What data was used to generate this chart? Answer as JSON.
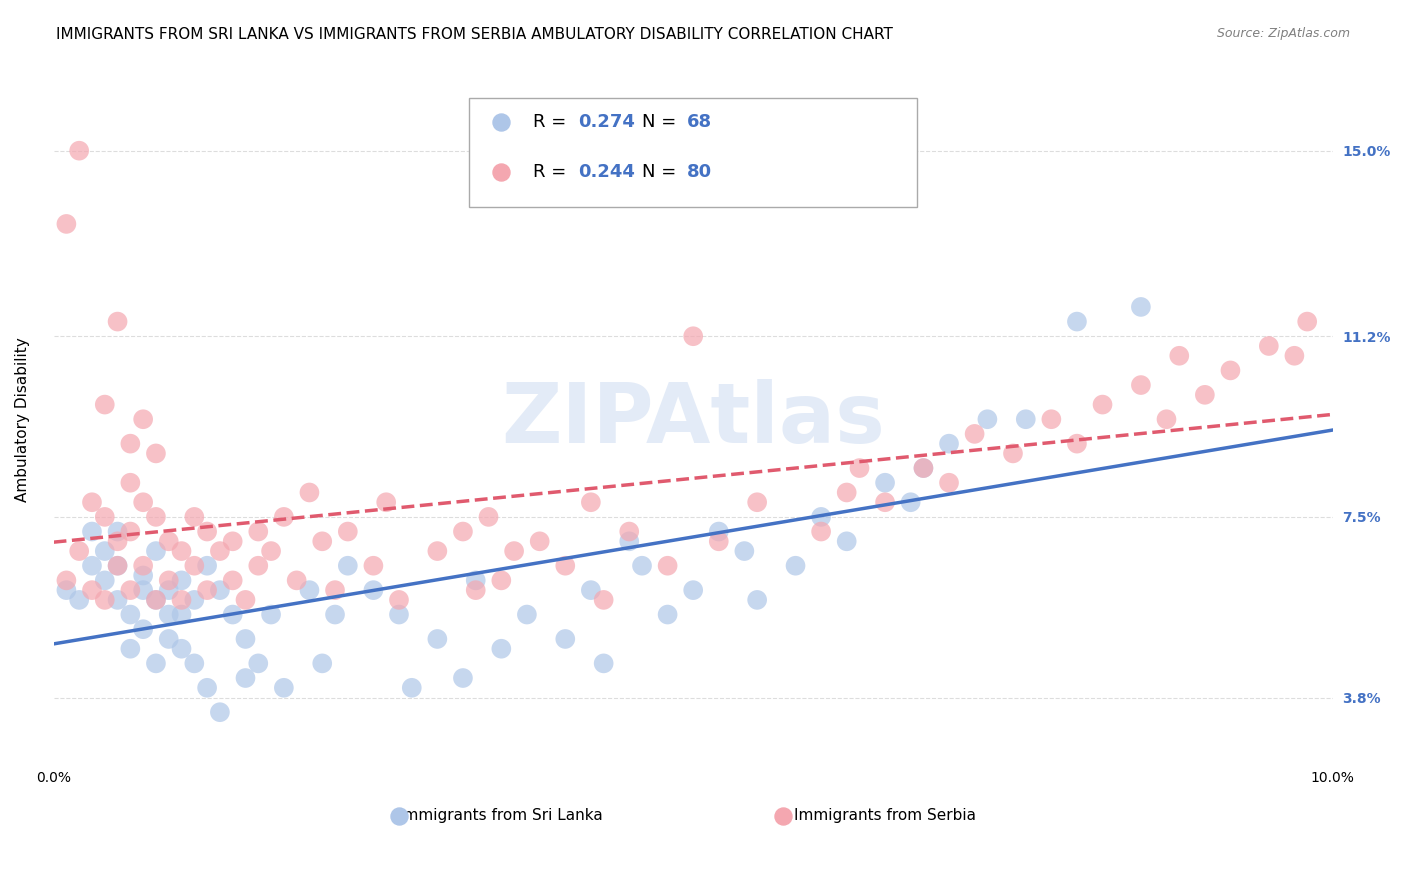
{
  "title": "IMMIGRANTS FROM SRI LANKA VS IMMIGRANTS FROM SERBIA AMBULATORY DISABILITY CORRELATION CHART",
  "source": "Source: ZipAtlas.com",
  "ylabel": "Ambulatory Disability",
  "xlabel": "",
  "xlim": [
    0.0,
    0.1
  ],
  "ylim": [
    0.025,
    0.165
  ],
  "yticks": [
    0.038,
    0.075,
    0.112,
    0.15
  ],
  "ytick_labels": [
    "3.8%",
    "7.5%",
    "11.2%",
    "15.0%"
  ],
  "xticks": [
    0.0,
    0.02,
    0.04,
    0.06,
    0.08,
    0.1
  ],
  "xtick_labels": [
    "0.0%",
    "",
    "",
    "",
    "",
    "10.0%"
  ],
  "sri_lanka_color": "#aec6e8",
  "serbia_color": "#f4a7b0",
  "sri_lanka_line_color": "#4472c4",
  "serbia_line_color": "#e05a6e",
  "sri_lanka_R": 0.274,
  "sri_lanka_N": 68,
  "serbia_R": 0.244,
  "serbia_N": 80,
  "legend_label_sri": "Immigrants from Sri Lanka",
  "legend_label_serbia": "Immigrants from Serbia",
  "watermark": "ZIPAtlas",
  "watermark_color": "#c8d8f0",
  "background_color": "#ffffff",
  "grid_color": "#dddddd",
  "title_fontsize": 11,
  "axis_label_fontsize": 11,
  "tick_fontsize": 10,
  "legend_fontsize": 13,
  "sri_lanka_x": [
    0.001,
    0.002,
    0.003,
    0.003,
    0.004,
    0.004,
    0.005,
    0.005,
    0.005,
    0.006,
    0.006,
    0.007,
    0.007,
    0.007,
    0.008,
    0.008,
    0.008,
    0.009,
    0.009,
    0.009,
    0.01,
    0.01,
    0.01,
    0.011,
    0.011,
    0.012,
    0.012,
    0.013,
    0.013,
    0.014,
    0.015,
    0.015,
    0.016,
    0.017,
    0.018,
    0.02,
    0.021,
    0.022,
    0.023,
    0.025,
    0.027,
    0.028,
    0.03,
    0.032,
    0.033,
    0.035,
    0.037,
    0.04,
    0.042,
    0.043,
    0.045,
    0.046,
    0.048,
    0.05,
    0.052,
    0.054,
    0.055,
    0.058,
    0.06,
    0.062,
    0.065,
    0.067,
    0.068,
    0.07,
    0.073,
    0.076,
    0.08,
    0.085
  ],
  "sri_lanka_y": [
    0.06,
    0.058,
    0.072,
    0.065,
    0.068,
    0.062,
    0.072,
    0.058,
    0.065,
    0.055,
    0.048,
    0.06,
    0.052,
    0.063,
    0.058,
    0.045,
    0.068,
    0.055,
    0.06,
    0.05,
    0.062,
    0.048,
    0.055,
    0.058,
    0.045,
    0.065,
    0.04,
    0.06,
    0.035,
    0.055,
    0.05,
    0.042,
    0.045,
    0.055,
    0.04,
    0.06,
    0.045,
    0.055,
    0.065,
    0.06,
    0.055,
    0.04,
    0.05,
    0.042,
    0.062,
    0.048,
    0.055,
    0.05,
    0.06,
    0.045,
    0.07,
    0.065,
    0.055,
    0.06,
    0.072,
    0.068,
    0.058,
    0.065,
    0.075,
    0.07,
    0.082,
    0.078,
    0.085,
    0.09,
    0.095,
    0.095,
    0.115,
    0.118
  ],
  "serbia_x": [
    0.001,
    0.001,
    0.002,
    0.002,
    0.003,
    0.003,
    0.004,
    0.004,
    0.004,
    0.005,
    0.005,
    0.005,
    0.006,
    0.006,
    0.006,
    0.006,
    0.007,
    0.007,
    0.007,
    0.008,
    0.008,
    0.008,
    0.009,
    0.009,
    0.01,
    0.01,
    0.011,
    0.011,
    0.012,
    0.012,
    0.013,
    0.014,
    0.014,
    0.015,
    0.016,
    0.016,
    0.017,
    0.018,
    0.019,
    0.02,
    0.021,
    0.022,
    0.023,
    0.025,
    0.026,
    0.027,
    0.03,
    0.032,
    0.033,
    0.034,
    0.035,
    0.036,
    0.038,
    0.04,
    0.042,
    0.043,
    0.045,
    0.048,
    0.05,
    0.052,
    0.055,
    0.06,
    0.062,
    0.063,
    0.065,
    0.068,
    0.07,
    0.072,
    0.075,
    0.078,
    0.08,
    0.082,
    0.085,
    0.087,
    0.088,
    0.09,
    0.092,
    0.095,
    0.097,
    0.098
  ],
  "serbia_y": [
    0.062,
    0.135,
    0.068,
    0.15,
    0.06,
    0.078,
    0.058,
    0.098,
    0.075,
    0.07,
    0.065,
    0.115,
    0.06,
    0.072,
    0.082,
    0.09,
    0.065,
    0.078,
    0.095,
    0.058,
    0.075,
    0.088,
    0.062,
    0.07,
    0.068,
    0.058,
    0.075,
    0.065,
    0.072,
    0.06,
    0.068,
    0.062,
    0.07,
    0.058,
    0.065,
    0.072,
    0.068,
    0.075,
    0.062,
    0.08,
    0.07,
    0.06,
    0.072,
    0.065,
    0.078,
    0.058,
    0.068,
    0.072,
    0.06,
    0.075,
    0.062,
    0.068,
    0.07,
    0.065,
    0.078,
    0.058,
    0.072,
    0.065,
    0.112,
    0.07,
    0.078,
    0.072,
    0.08,
    0.085,
    0.078,
    0.085,
    0.082,
    0.092,
    0.088,
    0.095,
    0.09,
    0.098,
    0.102,
    0.095,
    0.108,
    0.1,
    0.105,
    0.11,
    0.108,
    0.115
  ]
}
